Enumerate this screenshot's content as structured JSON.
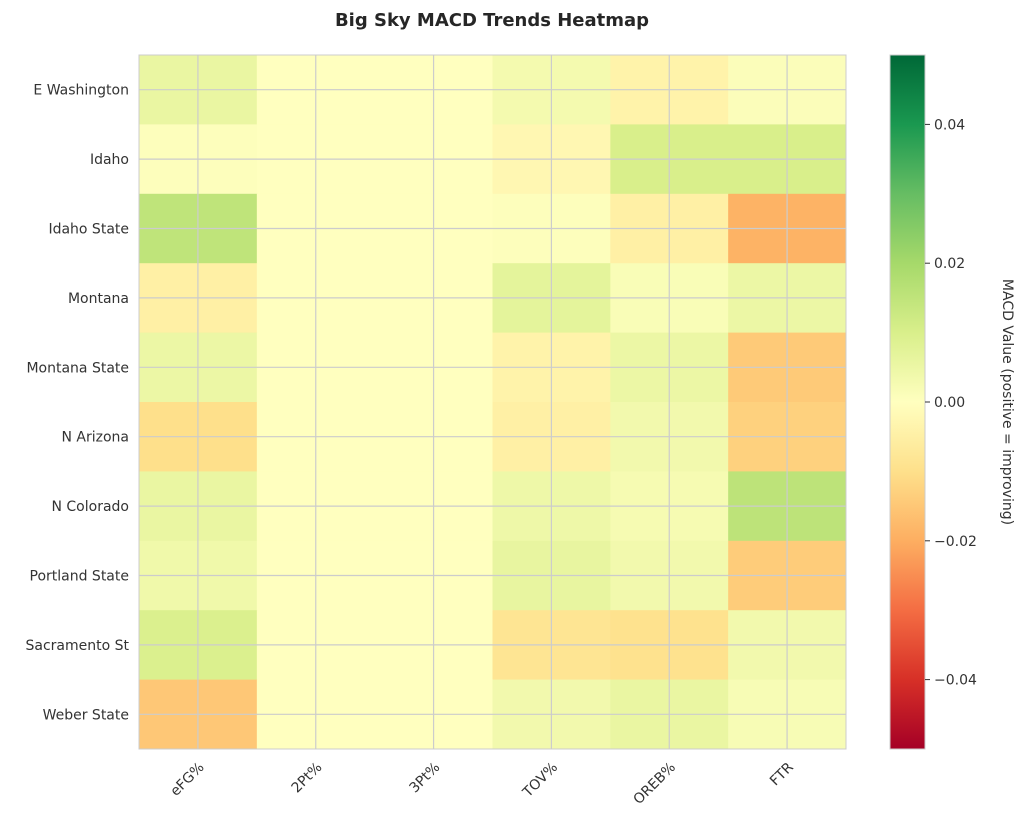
{
  "chart_data": {
    "type": "heatmap",
    "title": "Big Sky MACD Trends Heatmap",
    "rows": [
      "E Washington",
      "Idaho",
      "Idaho State",
      "Montana",
      "Montana State",
      "N Arizona",
      "N Colorado",
      "Portland State",
      "Sacramento St",
      "Weber State"
    ],
    "columns": [
      "eFG%",
      "2Pt%",
      "3Pt%",
      "TOV%",
      "OREB%",
      "FTR"
    ],
    "values": [
      [
        0.0055,
        0.0,
        0.0,
        0.003,
        -0.004,
        0.001
      ],
      [
        0.0005,
        0.0,
        0.0,
        -0.0025,
        0.01,
        0.01
      ],
      [
        0.015,
        0.0,
        0.0,
        0.0005,
        -0.005,
        -0.019
      ],
      [
        -0.005,
        0.0,
        0.0,
        0.007,
        0.0015,
        0.005
      ],
      [
        0.005,
        0.0,
        0.0,
        -0.004,
        0.005,
        -0.0145
      ],
      [
        -0.01,
        0.0,
        0.0,
        -0.005,
        0.0035,
        -0.013
      ],
      [
        0.0055,
        0.0,
        0.0,
        0.0045,
        0.0025,
        0.0155
      ],
      [
        0.004,
        0.0,
        0.0,
        0.006,
        0.0035,
        -0.014
      ],
      [
        0.0095,
        0.0,
        0.0,
        -0.0085,
        -0.0095,
        0.0035
      ],
      [
        -0.015,
        0.0,
        0.0,
        0.0035,
        0.0055,
        0.002
      ]
    ],
    "colorbar": {
      "label": "MACD Value (positive = improving)",
      "range": [
        -0.05,
        0.05
      ],
      "ticks": [
        0.04,
        0.02,
        0.0,
        -0.02,
        -0.04
      ],
      "tick_labels": [
        "0.04",
        "0.02",
        "0.00",
        "−0.02",
        "−0.04"
      ],
      "colormap": "RdYlGn"
    },
    "grid": true
  }
}
